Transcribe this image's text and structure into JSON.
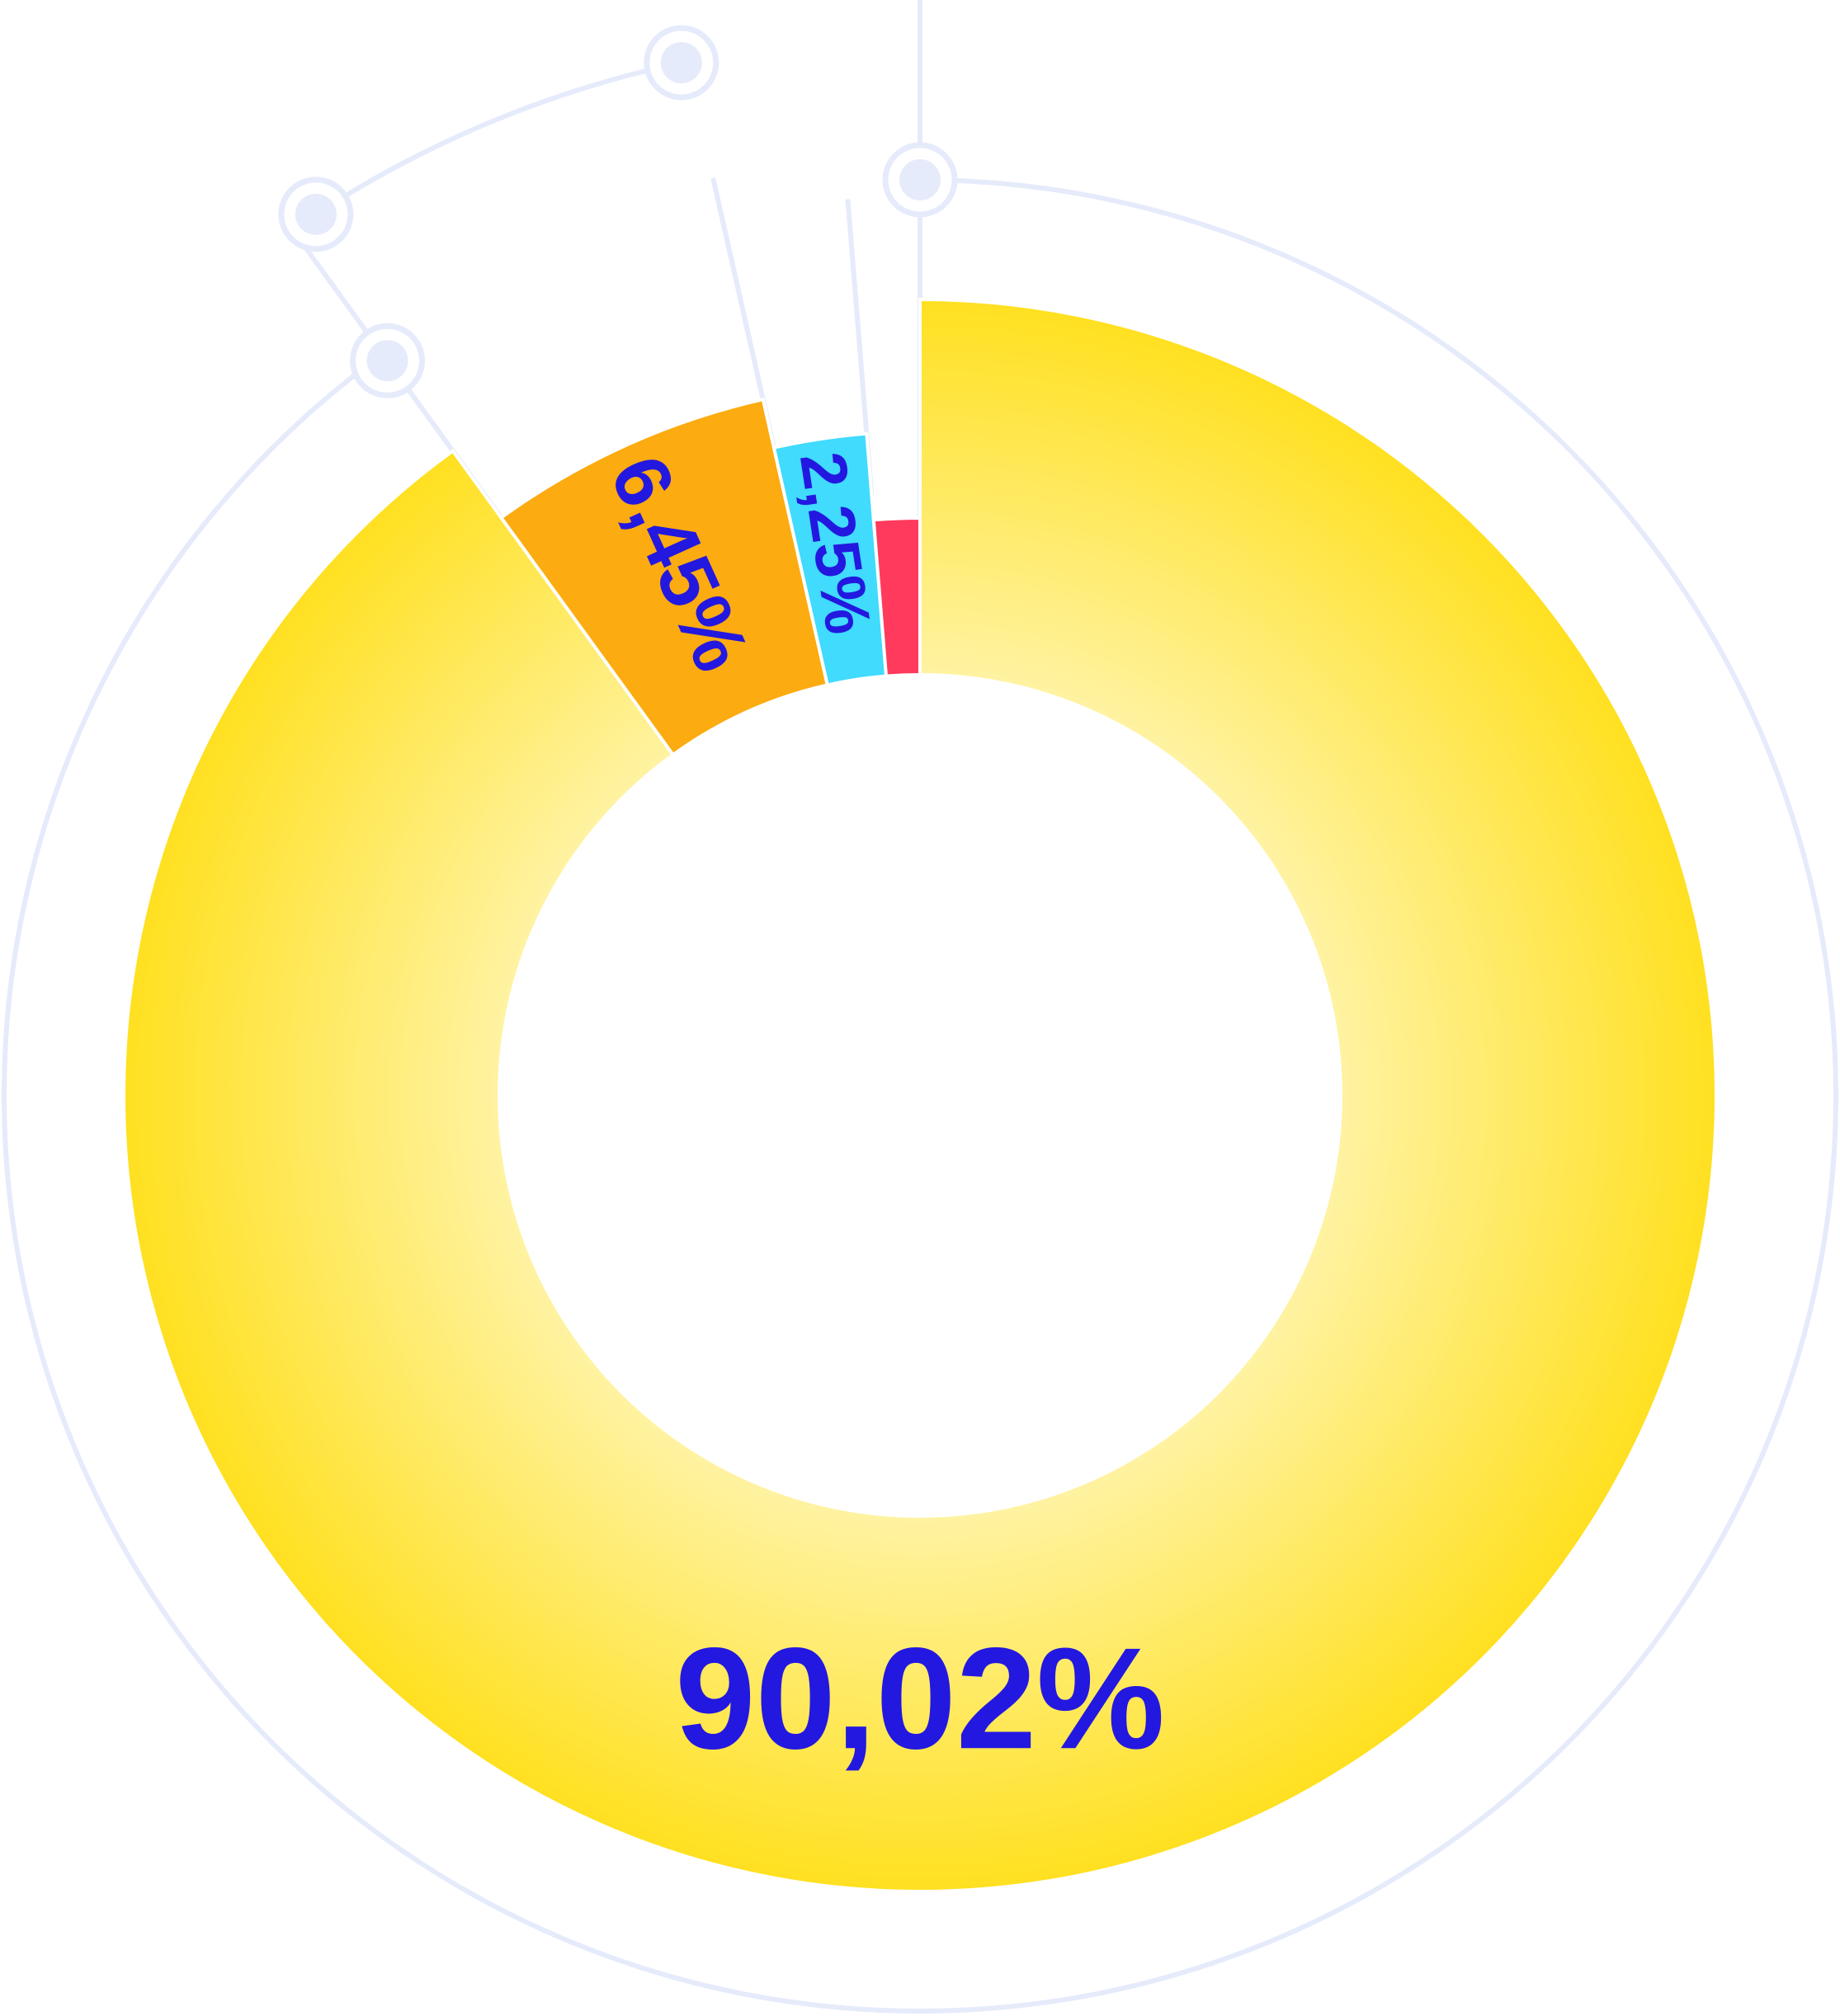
{
  "chart_data": {
    "type": "pie",
    "variant": "donut",
    "title": "",
    "slices": [
      {
        "label": "90,02%",
        "value": 90.02,
        "color": "#ffe020",
        "gradient_center_color": "#fff3a4",
        "label_visible": true
      },
      {
        "label": "6,45%",
        "value": 6.45,
        "color": "#fcab10",
        "label_visible": true
      },
      {
        "label": "2,25%",
        "value": 2.25,
        "color": "#40dbfd",
        "label_visible": true
      },
      {
        "label": "",
        "value": 1.28,
        "color": "#ff3a5c",
        "label_visible": false
      }
    ],
    "label_color": "#2318e0",
    "guide_line_color": "#e6ebfb",
    "start_angle": "top",
    "direction": "clockwise",
    "legend": "none"
  }
}
